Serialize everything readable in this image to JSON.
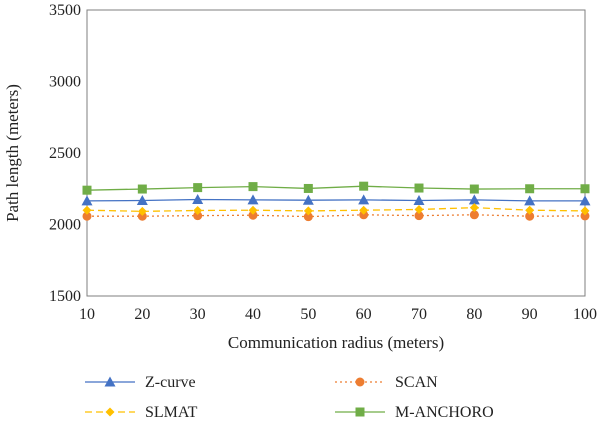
{
  "chart_data": {
    "type": "line",
    "title": "",
    "xlabel": "Communication radius (meters)",
    "ylabel": "Path length (meters)",
    "x": [
      10,
      20,
      30,
      40,
      50,
      60,
      70,
      80,
      90,
      100
    ],
    "xlim": [
      10,
      100
    ],
    "ylim": [
      1500,
      3500
    ],
    "y_ticks": [
      1500,
      2000,
      2500,
      3000,
      3500
    ],
    "grid": false,
    "legend_position": "bottom",
    "series": [
      {
        "name": "Z-curve",
        "values": [
          2165,
          2168,
          2175,
          2172,
          2170,
          2172,
          2168,
          2172,
          2165,
          2165
        ],
        "color": "#4472c4",
        "marker": "triangle",
        "line_style": "solid"
      },
      {
        "name": "SCAN",
        "values": [
          2058,
          2058,
          2062,
          2065,
          2055,
          2068,
          2062,
          2068,
          2058,
          2060
        ],
        "color": "#ed7d31",
        "marker": "circle",
        "line_style": "dotted"
      },
      {
        "name": "SLMAT",
        "values": [
          2100,
          2092,
          2098,
          2100,
          2095,
          2100,
          2105,
          2118,
          2100,
          2095
        ],
        "color": "#ffc000",
        "marker": "diamond",
        "line_style": "dashed"
      },
      {
        "name": "M-ANCHORO",
        "values": [
          2240,
          2248,
          2258,
          2265,
          2252,
          2268,
          2255,
          2248,
          2250,
          2250
        ],
        "color": "#70ad47",
        "marker": "square",
        "line_style": "solid"
      }
    ]
  }
}
